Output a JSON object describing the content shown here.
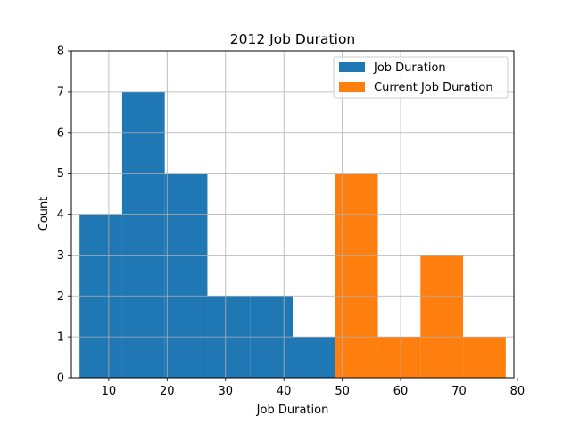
{
  "chart_data": {
    "type": "bar",
    "title": "2012 Job Duration",
    "xlabel": "Job Duration",
    "ylabel": "Count",
    "xlim": [
      3.6,
      79.4
    ],
    "ylim": [
      0,
      8
    ],
    "x_ticks": [
      10,
      20,
      30,
      40,
      50,
      60,
      70,
      80
    ],
    "y_ticks": [
      0,
      1,
      2,
      3,
      4,
      5,
      6,
      7,
      8
    ],
    "grid": true,
    "legend_position": "top-right",
    "series": [
      {
        "name": "Job Duration",
        "color": "#1f77b4",
        "bins": [
          {
            "x0": 5.0,
            "x1": 12.3,
            "value": 4
          },
          {
            "x0": 12.3,
            "x1": 19.6,
            "value": 7
          },
          {
            "x0": 19.6,
            "x1": 26.9,
            "value": 5
          },
          {
            "x0": 26.9,
            "x1": 34.2,
            "value": 2
          },
          {
            "x0": 34.2,
            "x1": 41.5,
            "value": 2
          },
          {
            "x0": 41.5,
            "x1": 48.8,
            "value": 1
          },
          {
            "x0": 48.8,
            "x1": 56.1,
            "value": 2
          }
        ]
      },
      {
        "name": "Current Job Duration",
        "color": "#ff7f0e",
        "bins": [
          {
            "x0": 48.8,
            "x1": 56.1,
            "value": 5
          },
          {
            "x0": 56.1,
            "x1": 63.4,
            "value": 1
          },
          {
            "x0": 63.4,
            "x1": 70.7,
            "value": 3
          },
          {
            "x0": 70.7,
            "x1": 78.0,
            "value": 1
          }
        ]
      }
    ]
  }
}
